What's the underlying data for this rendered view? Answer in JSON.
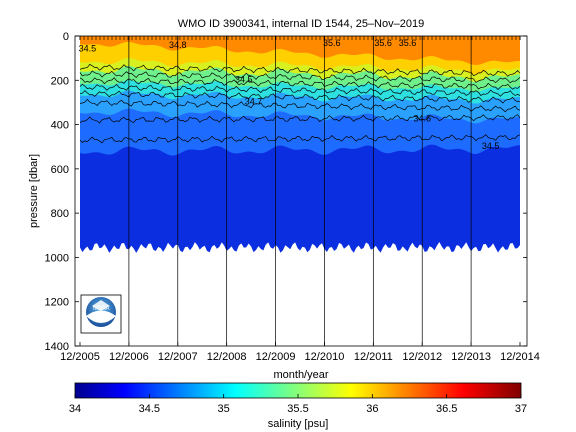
{
  "chart_data": {
    "type": "heatmap",
    "title": "WMO ID 3900341, internal ID 1544, 25–Nov–2019",
    "xlabel": "month/year",
    "ylabel": "pressure [dbar]",
    "x_ticks": [
      "12/2005",
      "12/2006",
      "12/2007",
      "12/2008",
      "12/2009",
      "12/2010",
      "12/2011",
      "12/2012",
      "12/2013",
      "12/2014"
    ],
    "y_ticks": [
      "0",
      "200",
      "400",
      "600",
      "800",
      "1000",
      "1200",
      "1400"
    ],
    "y_range": [
      0,
      1400
    ],
    "colorbar": {
      "label": "salinity [psu]",
      "range": [
        34,
        37
      ],
      "ticks": [
        "34",
        "34.5",
        "35",
        "35.5",
        "36",
        "36.5",
        "37"
      ],
      "colormap": "jet"
    },
    "contour_labels": [
      {
        "text": "34.5",
        "date_index": 0.15,
        "pressure": 70
      },
      {
        "text": "34.5",
        "date_index": 3.35,
        "pressure": 210
      },
      {
        "text": "34.7",
        "date_index": 3.55,
        "pressure": 310
      },
      {
        "text": "34.8",
        "date_index": 2.0,
        "pressure": 55
      },
      {
        "text": "35.6",
        "date_index": 5.15,
        "pressure": 45
      },
      {
        "text": "35.6",
        "date_index": 6.2,
        "pressure": 45
      },
      {
        "text": "35.6",
        "date_index": 6.7,
        "pressure": 45
      },
      {
        "text": "34.6",
        "date_index": 7.0,
        "pressure": 385
      },
      {
        "text": "34.5",
        "date_index": 8.4,
        "pressure": 510
      }
    ],
    "profile_depth_dbar": 1000,
    "grid": false,
    "logo": "noaa-logo"
  }
}
